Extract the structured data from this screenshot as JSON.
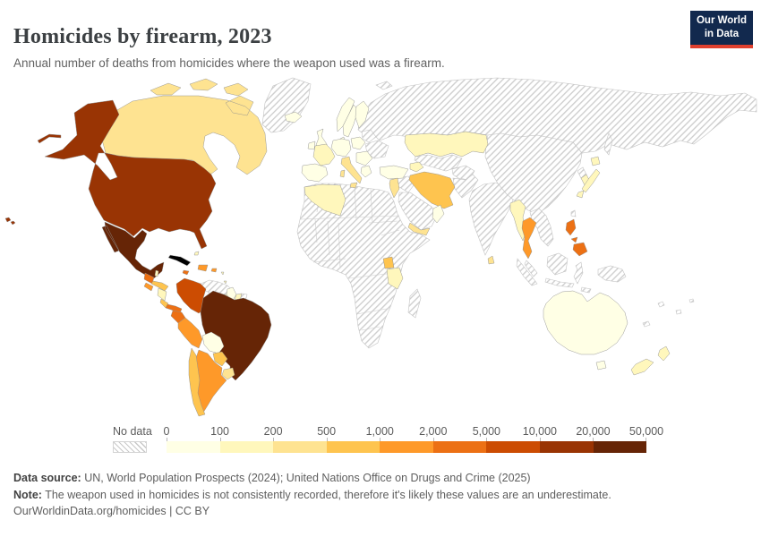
{
  "header": {
    "title": "Homicides by firearm, 2023",
    "subtitle": "Annual number of deaths from homicides where the weapon used was a firearm.",
    "logo": {
      "line1": "Our World",
      "line2": "in Data",
      "bg": "#12294e",
      "accent": "#e0402f"
    }
  },
  "legend": {
    "no_data_label": "No data",
    "ticks": [
      "0",
      "100",
      "200",
      "500",
      "1,000",
      "2,000",
      "5,000",
      "10,000",
      "20,000",
      "50,000"
    ],
    "bin_colors": [
      "#ffffe5",
      "#fff7bc",
      "#fee391",
      "#fec44f",
      "#fe9929",
      "#ec7014",
      "#cc4c02",
      "#993404",
      "#662506"
    ]
  },
  "footer": {
    "source_label": "Data source:",
    "source_text": " UN, World Population Prospects (2024); United Nations Office on Drugs and Crime (2025)",
    "note_label": "Note:",
    "note_text": " The weapon used in homicides is not consistently recorded, therefore it's likely these values are an underestimate.",
    "link_line": "OurWorldinData.org/homicides | CC BY"
  },
  "chart_data": {
    "type": "heatmap",
    "subtype": "choropleth-world-map",
    "title": "Homicides by firearm, 2023",
    "unit": "deaths",
    "legend_position": "bottom",
    "no_data": {
      "label": "No data",
      "pattern": "diagonal-hatch"
    },
    "bins": [
      {
        "label": "0–100",
        "color": "#ffffe5"
      },
      {
        "label": "100–200",
        "color": "#fff7bc"
      },
      {
        "label": "200–500",
        "color": "#fee391"
      },
      {
        "label": "500–1,000",
        "color": "#fec44f"
      },
      {
        "label": "1,000–2,000",
        "color": "#fe9929"
      },
      {
        "label": "2,000–5,000",
        "color": "#ec7014"
      },
      {
        "label": "5,000–10,000",
        "color": "#cc4c02"
      },
      {
        "label": "10,000–20,000",
        "color": "#993404"
      },
      {
        "label": "20,000–50,000",
        "color": "#662506"
      }
    ],
    "countries": [
      {
        "id": "canada",
        "name": "Canada",
        "bin": "200–500",
        "color": "#fee391"
      },
      {
        "id": "usa",
        "name": "United States",
        "bin": "10,000–20,000",
        "color": "#993404"
      },
      {
        "id": "mexico",
        "name": "Mexico",
        "bin": "20,000–50,000",
        "color": "#662506"
      },
      {
        "id": "guatemala",
        "name": "Guatemala",
        "bin": "2,000–5,000",
        "color": "#ec7014"
      },
      {
        "id": "belize",
        "name": "Belize",
        "bin": "100–200",
        "color": "#fff7bc"
      },
      {
        "id": "honduras",
        "name": "Honduras",
        "bin": "500–1,000",
        "color": "#fec44f"
      },
      {
        "id": "el-salvador",
        "name": "El Salvador",
        "bin": "1,000–2,000",
        "color": "#fe9929"
      },
      {
        "id": "nicaragua",
        "name": "Nicaragua",
        "bin": "100–200",
        "color": "#fff7bc"
      },
      {
        "id": "costa-rica",
        "name": "Costa Rica",
        "bin": "500–1,000",
        "color": "#fec44f"
      },
      {
        "id": "panama",
        "name": "Panama",
        "bin": "2,000–5,000",
        "color": "#ec7014"
      },
      {
        "id": "jamaica",
        "name": "Jamaica",
        "bin": "2,000–5,000",
        "color": "#ec7014"
      },
      {
        "id": "hispaniola",
        "name": "Haiti / Dominican Republic",
        "bin": "1,000–2,000",
        "color": "#fe9929"
      },
      {
        "id": "puerto-rico",
        "name": "Puerto Rico",
        "bin": "1,000–2,000",
        "color": "#fe9929"
      },
      {
        "id": "bahamas",
        "name": "Bahamas",
        "bin": "100–200",
        "color": "#fff7bc"
      },
      {
        "id": "trinidad",
        "name": "Trinidad and Tobago",
        "bin": "100–200",
        "color": "#fff7bc"
      },
      {
        "id": "colombia",
        "name": "Colombia",
        "bin": "5,000–10,000",
        "color": "#cc4c02"
      },
      {
        "id": "venezuela",
        "name": "Venezuela",
        "bin": "No data",
        "color": "no-data"
      },
      {
        "id": "guyana",
        "name": "Guyana",
        "bin": "0–100",
        "color": "#ffffe5"
      },
      {
        "id": "suriname",
        "name": "Suriname",
        "bin": "100–200",
        "color": "#fff7bc"
      },
      {
        "id": "french-guiana",
        "name": "French Guiana",
        "bin": "No data",
        "color": "no-data"
      },
      {
        "id": "ecuador",
        "name": "Ecuador",
        "bin": "2,000–5,000",
        "color": "#ec7014"
      },
      {
        "id": "peru",
        "name": "Peru",
        "bin": "1,000–2,000",
        "color": "#fe9929"
      },
      {
        "id": "brazil",
        "name": "Brazil",
        "bin": "20,000–50,000",
        "color": "#662506"
      },
      {
        "id": "bolivia",
        "name": "Bolivia",
        "bin": "0–100",
        "color": "#ffffe5"
      },
      {
        "id": "paraguay",
        "name": "Paraguay",
        "bin": "500–1,000",
        "color": "#fec44f"
      },
      {
        "id": "uruguay",
        "name": "Uruguay",
        "bin": "200–500",
        "color": "#fee391"
      },
      {
        "id": "argentina",
        "name": "Argentina",
        "bin": "1,000–2,000",
        "color": "#fe9929"
      },
      {
        "id": "chile",
        "name": "Chile",
        "bin": "500–1,000",
        "color": "#fec44f"
      },
      {
        "id": "greenland",
        "name": "Greenland",
        "bin": "No data",
        "color": "no-data"
      },
      {
        "id": "iceland",
        "name": "Iceland",
        "bin": "0–100",
        "color": "#ffffe5"
      },
      {
        "id": "ireland",
        "name": "Ireland",
        "bin": "0–100",
        "color": "#ffffe5"
      },
      {
        "id": "uk",
        "name": "United Kingdom",
        "bin": "0–100",
        "color": "#ffffe5"
      },
      {
        "id": "norway",
        "name": "Norway",
        "bin": "0–100",
        "color": "#ffffe5"
      },
      {
        "id": "sweden",
        "name": "Sweden",
        "bin": "0–100",
        "color": "#ffffe5"
      },
      {
        "id": "finland",
        "name": "Finland",
        "bin": "0–100",
        "color": "#ffffe5"
      },
      {
        "id": "denmark",
        "name": "Denmark",
        "bin": "0–100",
        "color": "#ffffe5"
      },
      {
        "id": "germany",
        "name": "Germany / Central Europe",
        "bin": "0–100",
        "color": "#ffffe5"
      },
      {
        "id": "france",
        "name": "France",
        "bin": "100–200",
        "color": "#fff7bc"
      },
      {
        "id": "iberia",
        "name": "Spain / Portugal",
        "bin": "0–100",
        "color": "#ffffe5"
      },
      {
        "id": "italy",
        "name": "Italy",
        "bin": "200–500",
        "color": "#fee391"
      },
      {
        "id": "poland",
        "name": "Poland / Czechia",
        "bin": "0–100",
        "color": "#ffffe5"
      },
      {
        "id": "balkans",
        "name": "Romania / Balkans",
        "bin": "0–100",
        "color": "#ffffe5"
      },
      {
        "id": "greece",
        "name": "Greece",
        "bin": "0–100",
        "color": "#ffffe5"
      },
      {
        "id": "belarus",
        "name": "Belarus",
        "bin": "No data",
        "color": "no-data"
      },
      {
        "id": "ukraine",
        "name": "Ukraine",
        "bin": "No data",
        "color": "no-data"
      },
      {
        "id": "russia",
        "name": "Russia",
        "bin": "No data",
        "color": "no-data"
      },
      {
        "id": "turkey",
        "name": "Turkey",
        "bin": "0–100",
        "color": "#ffffe5"
      },
      {
        "id": "caucasus",
        "name": "Georgia / Armenia / Azerbaijan",
        "bin": "100–200",
        "color": "#fff7bc"
      },
      {
        "id": "kazakhstan",
        "name": "Kazakhstan",
        "bin": "100–200",
        "color": "#fff7bc"
      },
      {
        "id": "central-asia",
        "name": "Uzbekistan / Turkmenistan",
        "bin": "No data",
        "color": "no-data"
      },
      {
        "id": "iran",
        "name": "Iran",
        "bin": "500–1,000",
        "color": "#fec44f"
      },
      {
        "id": "iraq",
        "name": "Iraq",
        "bin": "No data",
        "color": "no-data"
      },
      {
        "id": "levant",
        "name": "Israel / Jordan",
        "bin": "200–500",
        "color": "#fee391"
      },
      {
        "id": "saudi-arabia",
        "name": "Saudi Arabia",
        "bin": "No data",
        "color": "no-data"
      },
      {
        "id": "yemen",
        "name": "Yemen",
        "bin": "200–500",
        "color": "#fee391"
      },
      {
        "id": "oman",
        "name": "Oman",
        "bin": "0–100",
        "color": "#ffffe5"
      },
      {
        "id": "afghanistan",
        "name": "Afghanistan",
        "bin": "No data",
        "color": "no-data"
      },
      {
        "id": "pakistan",
        "name": "Pakistan",
        "bin": "No data",
        "color": "no-data"
      },
      {
        "id": "india",
        "name": "India",
        "bin": "No data",
        "color": "no-data"
      },
      {
        "id": "sri-lanka",
        "name": "Sri Lanka",
        "bin": "200–500",
        "color": "#fee391"
      },
      {
        "id": "china",
        "name": "China / Mongolia",
        "bin": "No data",
        "color": "no-data"
      },
      {
        "id": "myanmar",
        "name": "Myanmar",
        "bin": "100–200",
        "color": "#fff7bc"
      },
      {
        "id": "thailand",
        "name": "Thailand",
        "bin": "1,000–2,000",
        "color": "#fe9929"
      },
      {
        "id": "indochina",
        "name": "Vietnam / Laos / Cambodia",
        "bin": "No data",
        "color": "no-data"
      },
      {
        "id": "malaysia",
        "name": "Malaysia",
        "bin": "No data",
        "color": "no-data"
      },
      {
        "id": "indonesia",
        "name": "Indonesia",
        "bin": "No data",
        "color": "no-data"
      },
      {
        "id": "philippines",
        "name": "Philippines",
        "bin": "2,000–5,000",
        "color": "#ec7014"
      },
      {
        "id": "taiwan",
        "name": "Taiwan",
        "bin": "No data",
        "color": "no-data"
      },
      {
        "id": "north-korea",
        "name": "North Korea",
        "bin": "No data",
        "color": "no-data"
      },
      {
        "id": "south-korea",
        "name": "South Korea",
        "bin": "100–200",
        "color": "#fff7bc"
      },
      {
        "id": "japan",
        "name": "Japan",
        "bin": "100–200",
        "color": "#fff7bc"
      },
      {
        "id": "africa-most",
        "name": "Most of Africa",
        "bin": "No data",
        "color": "no-data"
      },
      {
        "id": "algeria",
        "name": "Algeria",
        "bin": "100–200",
        "color": "#fff7bc"
      },
      {
        "id": "uganda",
        "name": "Uganda",
        "bin": "500–1,000",
        "color": "#fec44f"
      },
      {
        "id": "tanzania",
        "name": "Tanzania",
        "bin": "100–200",
        "color": "#fff7bc"
      },
      {
        "id": "madagascar",
        "name": "Madagascar",
        "bin": "No data",
        "color": "no-data"
      },
      {
        "id": "new-guinea",
        "name": "Papua New Guinea",
        "bin": "No data",
        "color": "no-data"
      },
      {
        "id": "australia",
        "name": "Australia",
        "bin": "0–100",
        "color": "#ffffe5"
      },
      {
        "id": "new-zealand",
        "name": "New Zealand",
        "bin": "100–200",
        "color": "#fff7bc"
      },
      {
        "id": "pacific-islands",
        "name": "Pacific islands",
        "bin": "No data",
        "color": "no-data"
      },
      {
        "id": "arctic-islands",
        "name": "Svalbard / Arctic islands",
        "bin": "No data",
        "color": "no-data"
      },
      {
        "id": "sakhalin",
        "name": "Sakhalin",
        "bin": "No data",
        "color": "no-data"
      }
    ]
  }
}
